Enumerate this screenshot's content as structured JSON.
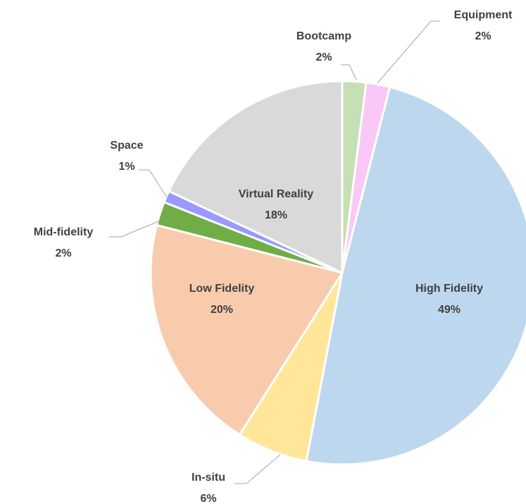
{
  "chart_data": {
    "type": "pie",
    "categories": [
      "Bootcamp",
      "Equipment",
      "High Fidelity",
      "In-situ",
      "Low Fidelity",
      "Mid-fidelity",
      "Space",
      "Virtual Reality"
    ],
    "values": [
      2,
      2,
      49,
      6,
      20,
      2,
      1,
      18
    ],
    "value_labels": [
      "2%",
      "2%",
      "49%",
      "6%",
      "20%",
      "2%",
      "1%",
      "18%"
    ],
    "colors": [
      "#c5e0b4",
      "#f9c8f6",
      "#bdd7ee",
      "#ffe699",
      "#f8cbad",
      "#70ad47",
      "#9999ff",
      "#d9d9d9"
    ]
  }
}
